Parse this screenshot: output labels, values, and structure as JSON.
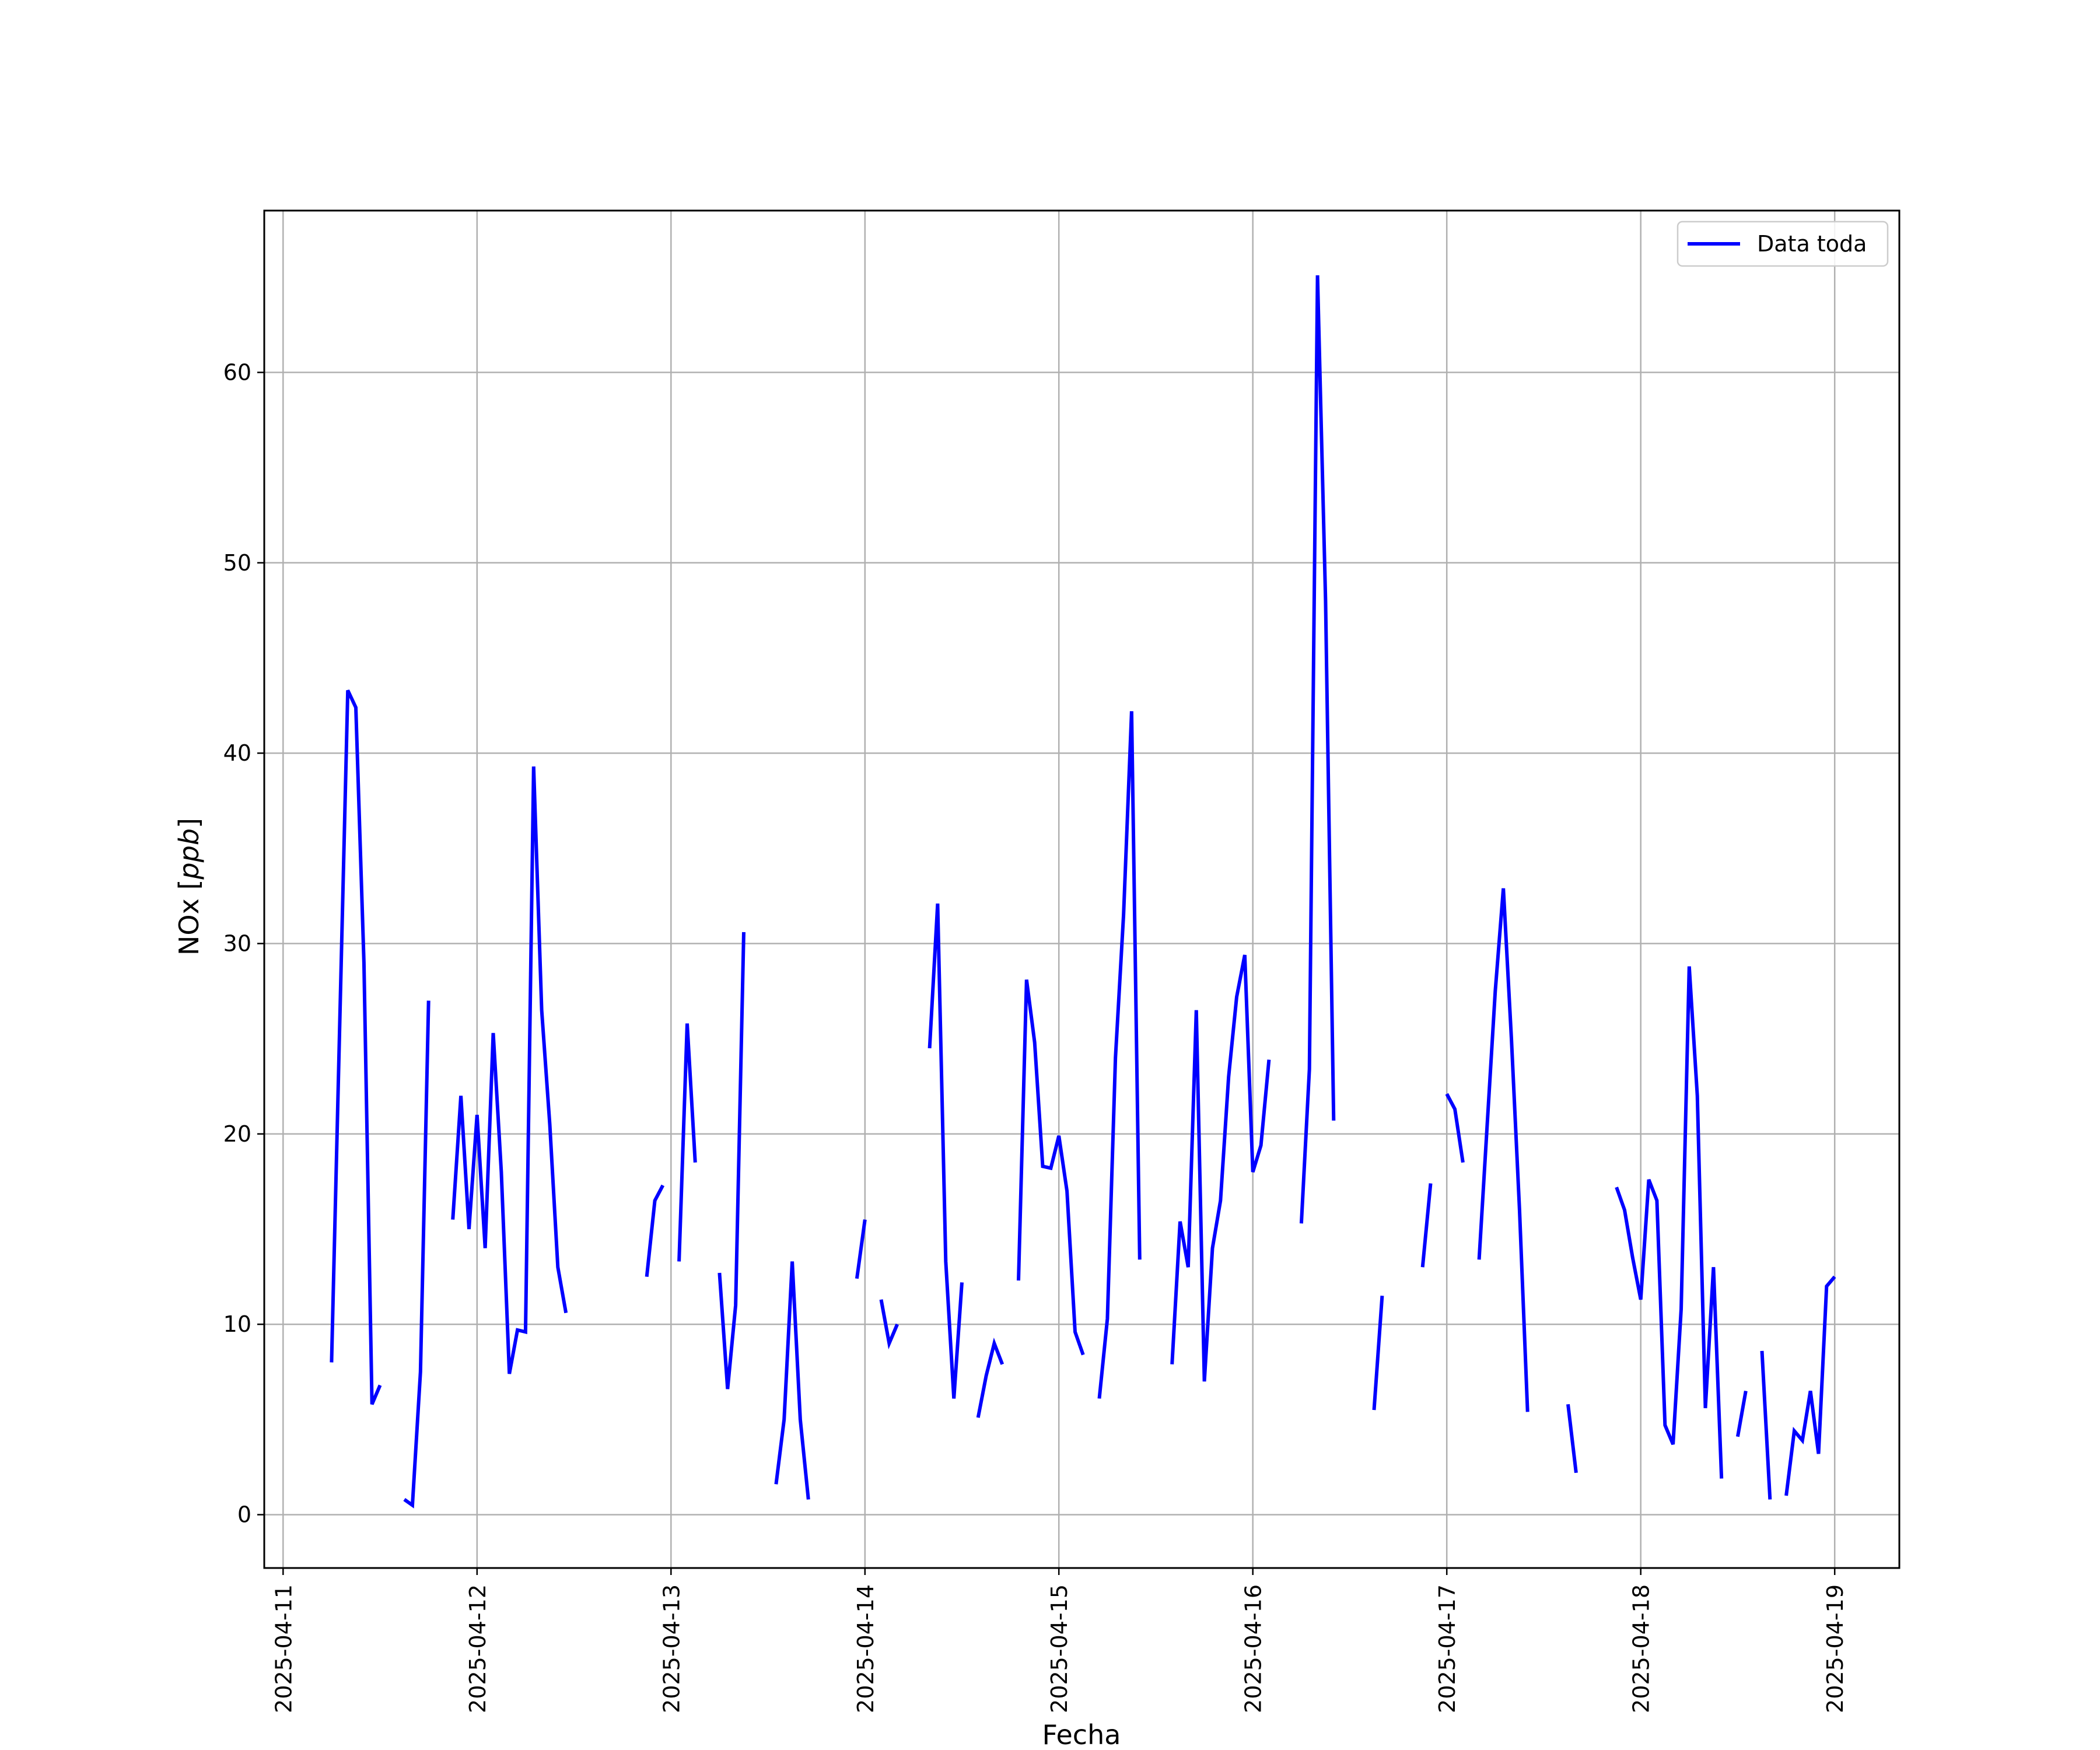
{
  "chart_data": {
    "type": "line",
    "xlabel": "Fecha",
    "ylabel": "NOx [ppb]",
    "ylabel_main": "NOx",
    "ylabel_unit": "ppb",
    "x_range": [
      "2025-04-10T21:40",
      "2025-04-19T08:00"
    ],
    "ylim": [
      -2.8,
      68.5
    ],
    "y_ticks": [
      0,
      10,
      20,
      30,
      40,
      50,
      60
    ],
    "x_ticks": [
      "2025-04-11",
      "2025-04-12",
      "2025-04-13",
      "2025-04-14",
      "2025-04-15",
      "2025-04-16",
      "2025-04-17",
      "2025-04-18",
      "2025-04-19"
    ],
    "grid": true,
    "legend_position": "top-right",
    "series": [
      {
        "name": "Data toda",
        "color": "#0000ff",
        "segments": [
          [
            [
              "2025-04-11T06:00",
              8.0
            ],
            [
              "2025-04-11T08:00",
              43.3
            ],
            [
              "2025-04-11T09:00",
              42.4
            ],
            [
              "2025-04-11T10:00",
              29.0
            ],
            [
              "2025-04-11T11:00",
              5.8
            ],
            [
              "2025-04-11T12:00",
              6.8
            ]
          ],
          [
            [
              "2025-04-11T15:00",
              0.8
            ],
            [
              "2025-04-11T16:00",
              0.5
            ],
            [
              "2025-04-11T17:00",
              7.5
            ],
            [
              "2025-04-11T18:00",
              27.0
            ]
          ],
          [
            [
              "2025-04-11T21:00",
              15.5
            ],
            [
              "2025-04-11T22:00",
              22.0
            ],
            [
              "2025-04-11T23:00",
              15.0
            ],
            [
              "2025-04-12T00:00",
              21.0
            ],
            [
              "2025-04-12T01:00",
              14.0
            ],
            [
              "2025-04-12T02:00",
              25.3
            ],
            [
              "2025-04-12T03:00",
              18.0
            ],
            [
              "2025-04-12T04:00",
              7.4
            ],
            [
              "2025-04-12T05:00",
              9.7
            ],
            [
              "2025-04-12T06:00",
              9.6
            ],
            [
              "2025-04-12T07:00",
              39.3
            ],
            [
              "2025-04-12T08:00",
              26.5
            ],
            [
              "2025-04-12T09:00",
              20.5
            ],
            [
              "2025-04-12T10:00",
              13.0
            ],
            [
              "2025-04-12T11:00",
              10.6
            ]
          ],
          [
            [
              "2025-04-12T21:00",
              12.5
            ],
            [
              "2025-04-12T22:00",
              16.5
            ],
            [
              "2025-04-12T23:00",
              17.3
            ]
          ],
          [
            [
              "2025-04-13T01:00",
              13.3
            ],
            [
              "2025-04-13T02:00",
              25.8
            ],
            [
              "2025-04-13T03:00",
              18.5
            ]
          ],
          [
            [
              "2025-04-13T06:00",
              12.7
            ],
            [
              "2025-04-13T07:00",
              6.6
            ],
            [
              "2025-04-13T08:00",
              11.0
            ],
            [
              "2025-04-13T09:00",
              30.6
            ]
          ],
          [
            [
              "2025-04-13T13:00",
              1.6
            ],
            [
              "2025-04-13T14:00",
              5.0
            ],
            [
              "2025-04-13T15:00",
              13.3
            ],
            [
              "2025-04-13T16:00",
              5.0
            ],
            [
              "2025-04-13T17:00",
              0.8
            ]
          ],
          [
            [
              "2025-04-13T23:00",
              12.4
            ],
            [
              "2025-04-14T00:00",
              15.5
            ]
          ],
          [
            [
              "2025-04-14T02:00",
              11.3
            ],
            [
              "2025-04-14T03:00",
              9.0
            ],
            [
              "2025-04-14T04:00",
              10.0
            ]
          ],
          [
            [
              "2025-04-14T08:00",
              24.5
            ],
            [
              "2025-04-14T09:00",
              32.1
            ],
            [
              "2025-04-14T10:00",
              13.3
            ],
            [
              "2025-04-14T11:00",
              6.1
            ],
            [
              "2025-04-14T12:00",
              12.2
            ]
          ],
          [
            [
              "2025-04-14T14:00",
              5.1
            ],
            [
              "2025-04-14T15:00",
              7.3
            ],
            [
              "2025-04-14T16:00",
              9.0
            ],
            [
              "2025-04-14T17:00",
              7.9
            ]
          ],
          [
            [
              "2025-04-14T19:00",
              12.3
            ],
            [
              "2025-04-14T20:00",
              28.1
            ],
            [
              "2025-04-14T21:00",
              24.8
            ],
            [
              "2025-04-14T22:00",
              18.3
            ],
            [
              "2025-04-14T23:00",
              18.2
            ],
            [
              "2025-04-15T00:00",
              19.9
            ],
            [
              "2025-04-15T01:00",
              17.0
            ],
            [
              "2025-04-15T02:00",
              9.6
            ],
            [
              "2025-04-15T03:00",
              8.4
            ]
          ],
          [
            [
              "2025-04-15T05:00",
              6.1
            ],
            [
              "2025-04-15T06:00",
              10.3
            ],
            [
              "2025-04-15T07:00",
              24.0
            ],
            [
              "2025-04-15T08:00",
              31.5
            ],
            [
              "2025-04-15T09:00",
              42.2
            ],
            [
              "2025-04-15T10:00",
              13.4
            ]
          ],
          [
            [
              "2025-04-15T14:00",
              7.9
            ],
            [
              "2025-04-15T15:00",
              15.4
            ],
            [
              "2025-04-15T16:00",
              13.0
            ],
            [
              "2025-04-15T17:00",
              26.5
            ],
            [
              "2025-04-15T18:00",
              7.0
            ],
            [
              "2025-04-15T19:00",
              14.0
            ],
            [
              "2025-04-15T20:00",
              16.5
            ],
            [
              "2025-04-15T21:00",
              23.0
            ],
            [
              "2025-04-15T22:00",
              27.2
            ],
            [
              "2025-04-15T23:00",
              29.4
            ],
            [
              "2025-04-16T00:00",
              18.0
            ],
            [
              "2025-04-16T01:00",
              19.4
            ],
            [
              "2025-04-16T02:00",
              23.9
            ]
          ],
          [
            [
              "2025-04-16T06:00",
              15.3
            ],
            [
              "2025-04-16T07:00",
              23.4
            ],
            [
              "2025-04-16T08:00",
              65.1
            ],
            [
              "2025-04-16T09:00",
              48.0
            ],
            [
              "2025-04-16T10:00",
              20.7
            ]
          ],
          [
            [
              "2025-04-16T15:00",
              5.5
            ],
            [
              "2025-04-16T16:00",
              11.5
            ]
          ],
          [
            [
              "2025-04-16T21:00",
              13.0
            ],
            [
              "2025-04-16T22:00",
              17.4
            ]
          ],
          [
            [
              "2025-04-17T00:00",
              22.1
            ],
            [
              "2025-04-17T01:00",
              21.3
            ],
            [
              "2025-04-17T02:00",
              18.5
            ]
          ],
          [
            [
              "2025-04-17T04:00",
              13.4
            ],
            [
              "2025-04-17T05:00",
              20.5
            ],
            [
              "2025-04-17T06:00",
              27.5
            ],
            [
              "2025-04-17T07:00",
              32.9
            ],
            [
              "2025-04-17T08:00",
              25.0
            ],
            [
              "2025-04-17T09:00",
              16.0
            ],
            [
              "2025-04-17T10:00",
              5.4
            ]
          ],
          [
            [
              "2025-04-17T15:00",
              5.8
            ],
            [
              "2025-04-17T16:00",
              2.2
            ]
          ],
          [
            [
              "2025-04-17T21:00",
              17.2
            ],
            [
              "2025-04-17T22:00",
              16.0
            ],
            [
              "2025-04-17T23:00",
              13.5
            ],
            [
              "2025-04-18T00:00",
              11.3
            ],
            [
              "2025-04-18T01:00",
              17.6
            ],
            [
              "2025-04-18T02:00",
              16.5
            ],
            [
              "2025-04-18T03:00",
              4.7
            ],
            [
              "2025-04-18T04:00",
              3.7
            ],
            [
              "2025-04-18T05:00",
              10.8
            ],
            [
              "2025-04-18T06:00",
              28.8
            ],
            [
              "2025-04-18T07:00",
              22.0
            ],
            [
              "2025-04-18T08:00",
              5.6
            ],
            [
              "2025-04-18T09:00",
              13.0
            ],
            [
              "2025-04-18T10:00",
              1.9
            ]
          ],
          [
            [
              "2025-04-18T12:00",
              4.1
            ],
            [
              "2025-04-18T13:00",
              6.5
            ]
          ],
          [
            [
              "2025-04-18T15:00",
              8.6
            ],
            [
              "2025-04-18T16:00",
              0.8
            ]
          ],
          [
            [
              "2025-04-18T18:00",
              1.0
            ],
            [
              "2025-04-18T19:00",
              4.4
            ],
            [
              "2025-04-18T20:00",
              3.9
            ],
            [
              "2025-04-18T21:00",
              6.5
            ],
            [
              "2025-04-18T22:00",
              3.2
            ],
            [
              "2025-04-18T23:00",
              12.0
            ],
            [
              "2025-04-19T00:00",
              12.5
            ]
          ]
        ]
      }
    ]
  }
}
